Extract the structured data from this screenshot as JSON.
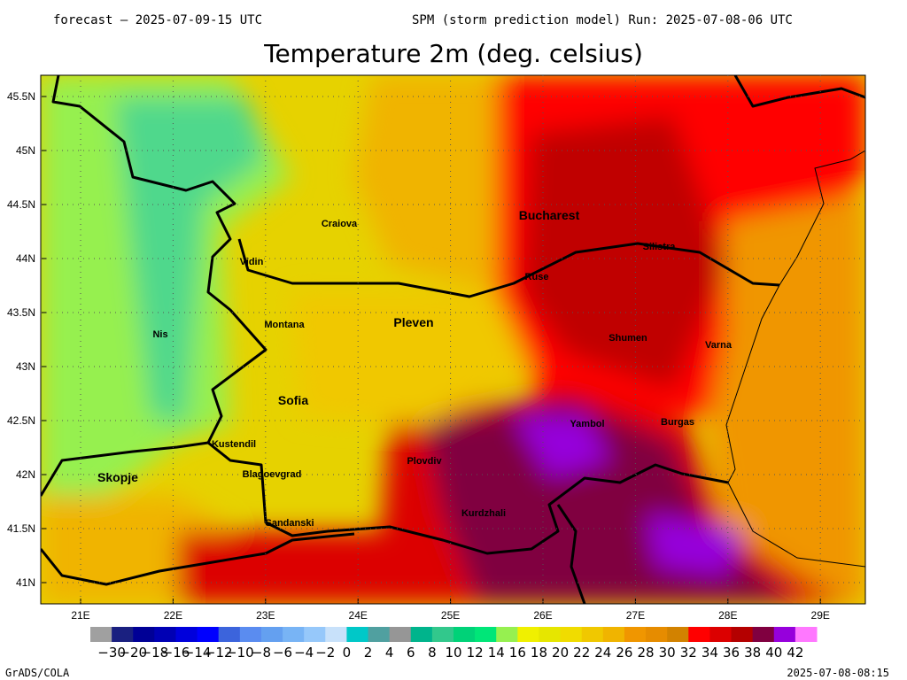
{
  "header": {
    "forecast": "forecast – 2025-07-09-15 UTC",
    "run": "SPM (storm prediction model) Run: 2025-07-08-06 UTC",
    "title": "Temperature 2m (deg. celsius)"
  },
  "map": {
    "lat_labels": [
      "45.5N",
      "45N",
      "44.5N",
      "44N",
      "43.5N",
      "43N",
      "42.5N",
      "42N",
      "41.5N",
      "41N"
    ],
    "lon_labels": [
      "21E",
      "22E",
      "23E",
      "24E",
      "25E",
      "26E",
      "27E",
      "28E",
      "29E"
    ],
    "cities": [
      "Craiova",
      "Bucharest",
      "Silistra",
      "Vidin",
      "Ruse",
      "Montana",
      "Pleven",
      "Nis",
      "Shumen",
      "Varna",
      "Sofia",
      "Yambol",
      "Burgas",
      "Kustendil",
      "Plovdiv",
      "Skopje",
      "Blagoevgrad",
      "Kurdzhali",
      "Sandanski"
    ]
  },
  "colorbar": {
    "labels": [
      "−30",
      "−20",
      "−18",
      "−16",
      "−14",
      "−12",
      "−10",
      "−8",
      "−6",
      "−4",
      "−2",
      "0",
      "2",
      "4",
      "6",
      "8",
      "10",
      "12",
      "14",
      "16",
      "18",
      "20",
      "22",
      "24",
      "26",
      "28",
      "30",
      "32",
      "34",
      "36",
      "38",
      "40",
      "42"
    ]
  },
  "footer": {
    "left": "GrADS/COLA",
    "right": "2025-07-08-08:15"
  }
}
